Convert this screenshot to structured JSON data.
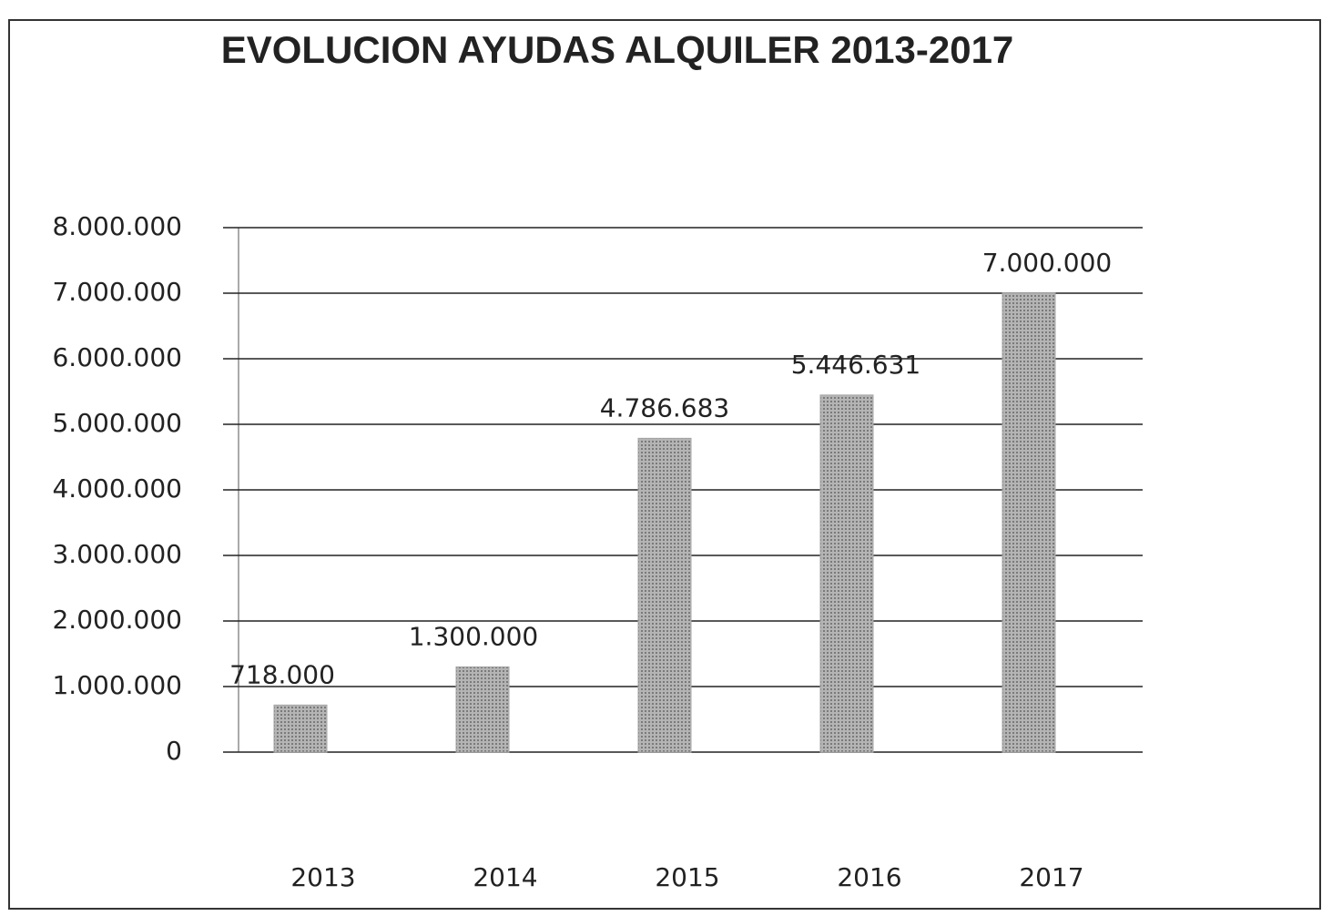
{
  "chart_data": {
    "type": "bar",
    "title": "EVOLUCION AYUDAS ALQUILER 2013-2017",
    "categories": [
      "2013",
      "2014",
      "2015",
      "2016",
      "2017"
    ],
    "values": [
      718000,
      1300000,
      4786683,
      5446631,
      7000000
    ],
    "value_labels": [
      "718.000",
      "1.300.000",
      "4.786.683",
      "5.446.631",
      "7.000.000"
    ],
    "color": "#a6a6a6",
    "ylim": [
      0,
      8000000
    ],
    "yticks": [
      0,
      {
        "value": 1000000,
        "label": "1.000.000"
      },
      {
        "value": 2000000,
        "label": "2.000.000"
      },
      {
        "value": 3000000,
        "label": "3.000.000"
      },
      {
        "value": 4000000,
        "label": "4.000.000"
      },
      {
        "value": 5000000,
        "label": "5.000.000"
      },
      {
        "value": 6000000,
        "label": "6.000.000"
      },
      {
        "value": 7000000,
        "label": "7.000.000"
      },
      {
        "value": 8000000,
        "label": "8.000.000"
      }
    ],
    "grid": true
  }
}
